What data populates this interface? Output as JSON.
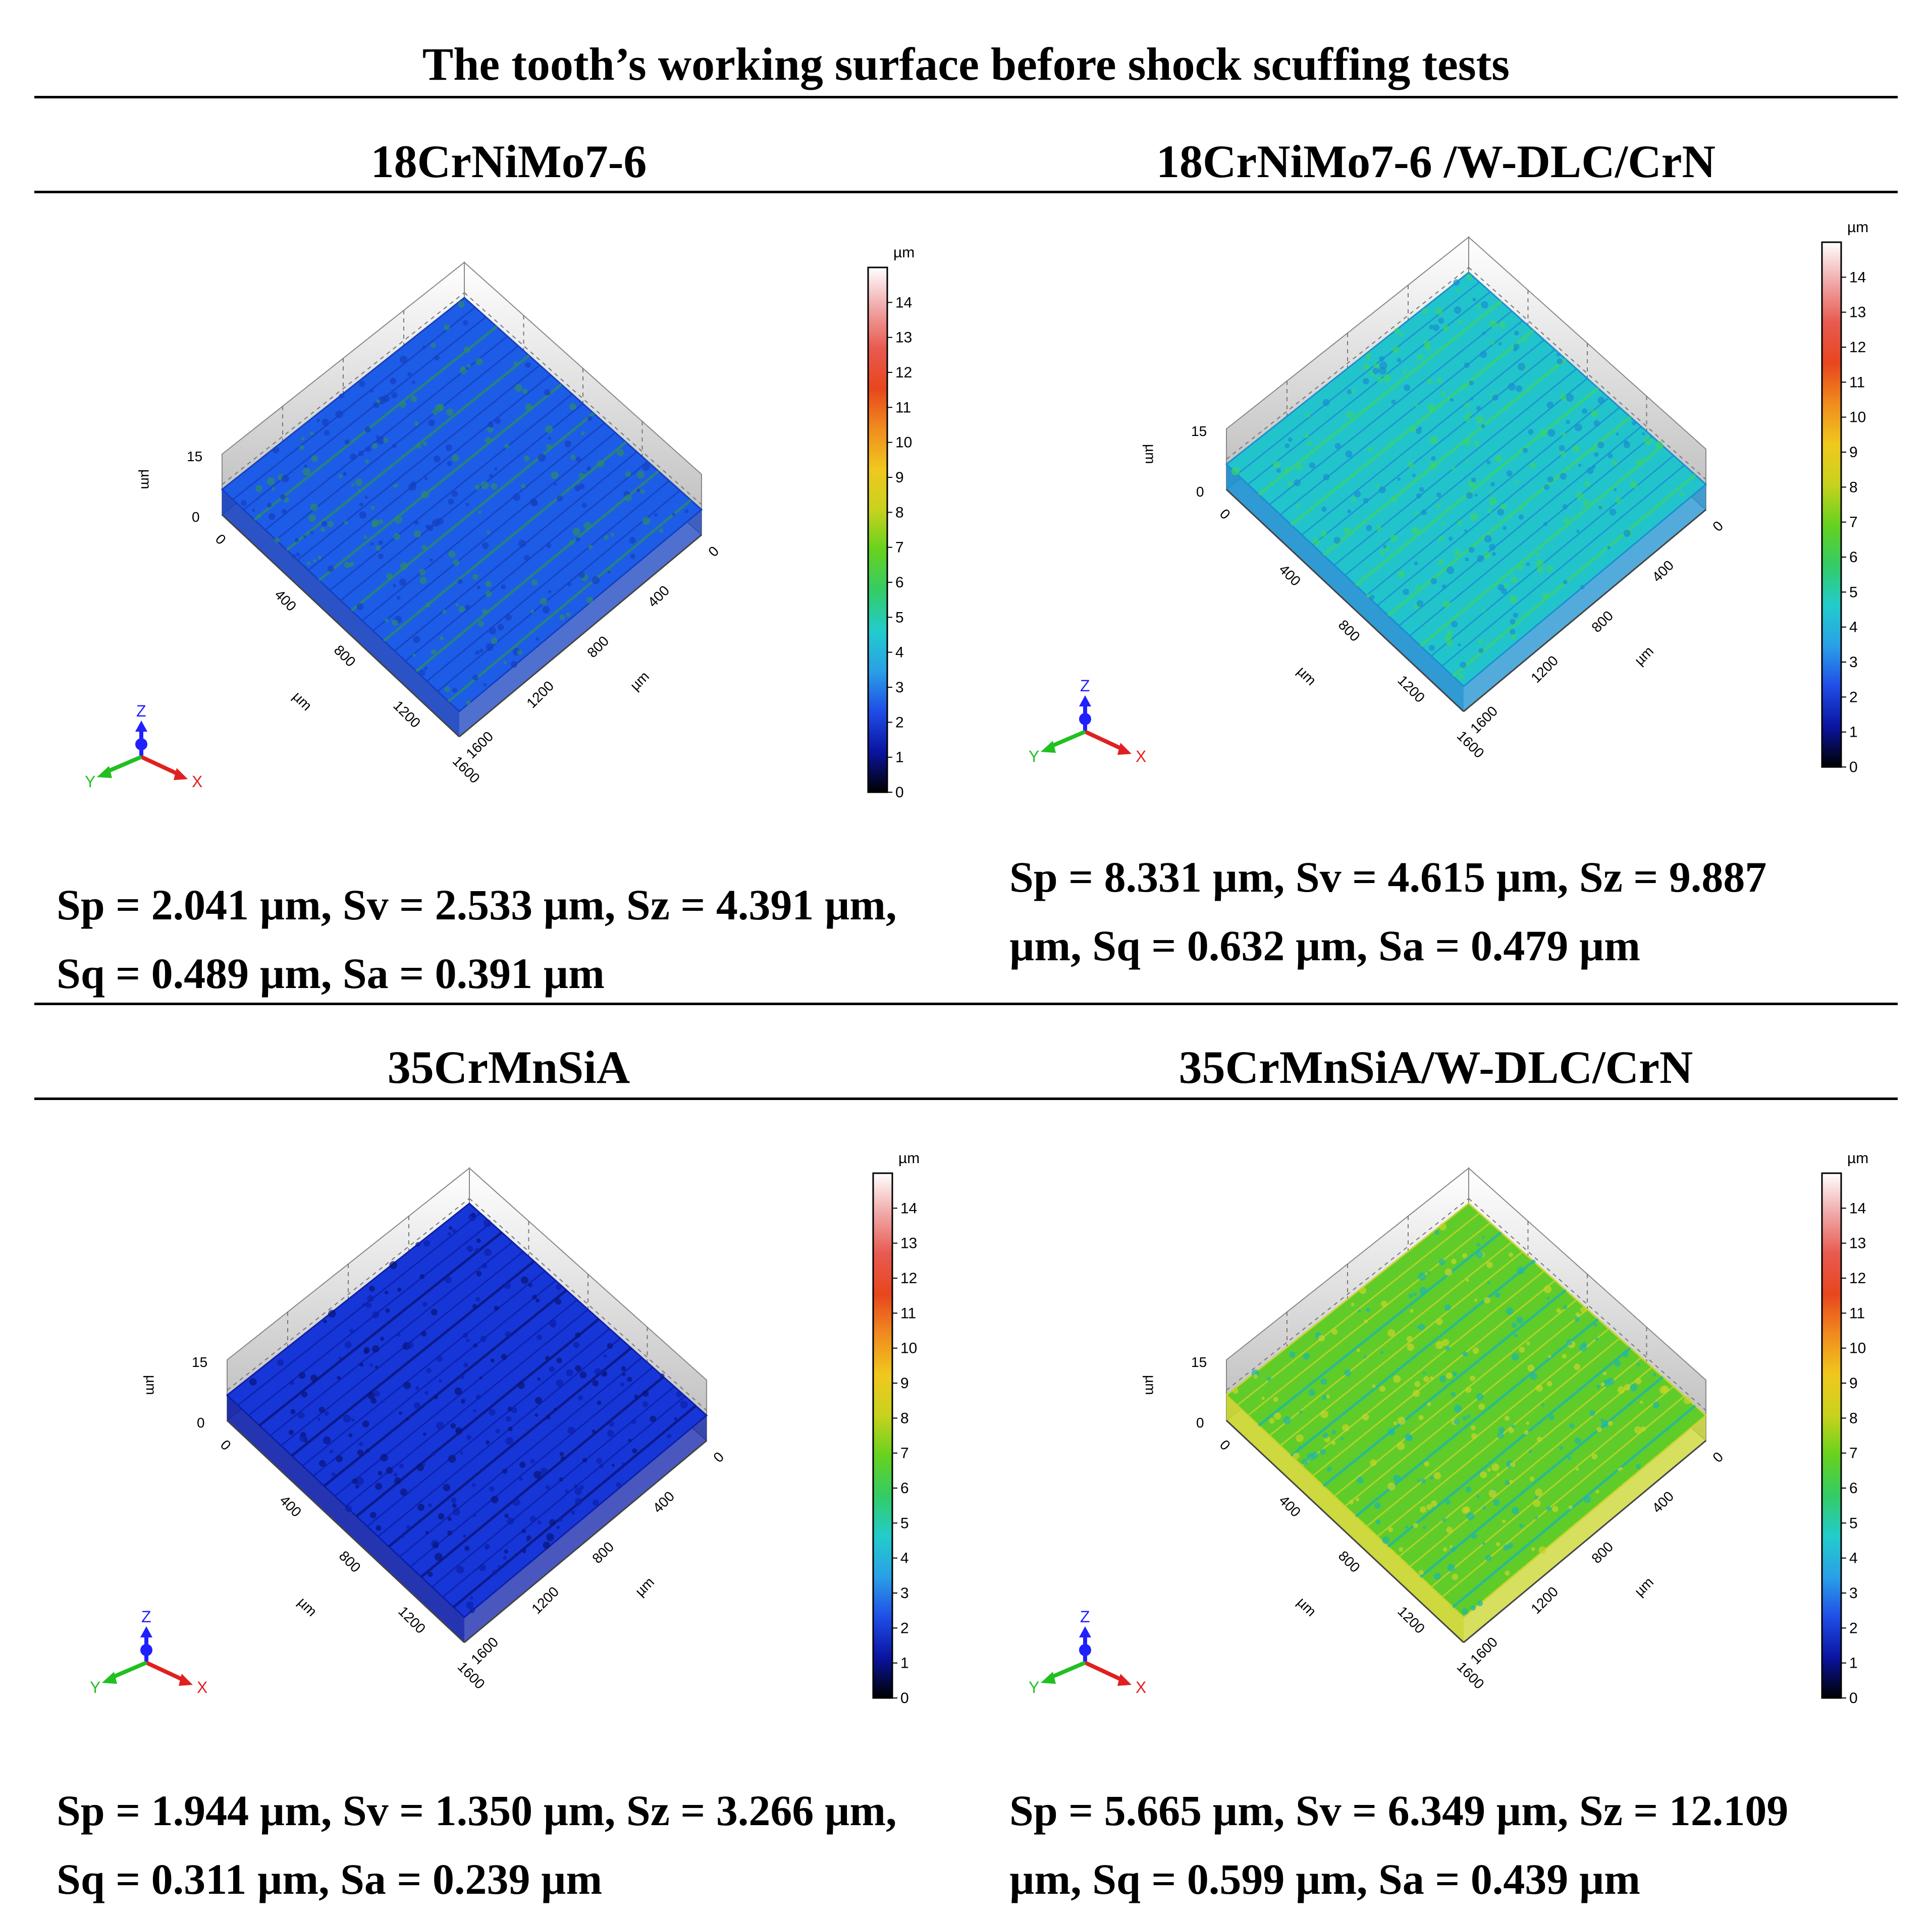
{
  "title": "The tooth’s working surface before shock scuffing tests",
  "panels": [
    {
      "heading": "18CrNiMo7-6",
      "stats_line1": "Sp = 2.041 µm, Sv = 2.533 µm, Sz = 4.391 µm,",
      "stats_line2": "Sq = 0.489 µm, Sa = 0.391 µm",
      "surface_color": "#1d5ce6",
      "surface_texture": "#1540c0",
      "stripe_color": "#2d8a6a"
    },
    {
      "heading": "18CrNiMo7-6 /W-DLC/CrN",
      "stats_line1": "Sp = 8.331 µm, Sv = 4.615 µm, Sz = 9.887",
      "stats_line2": "µm, Sq = 0.632 µm, Sa = 0.479 µm",
      "surface_color": "#22c4cc",
      "surface_texture": "#1a8fd0",
      "stripe_color": "#3bd36a"
    },
    {
      "heading": "35CrMnSiA",
      "stats_line1": "Sp = 1.944 µm, Sv = 1.350 µm, Sz = 3.266 µm,",
      "stats_line2": "Sq = 0.311 µm, Sa = 0.239 µm",
      "surface_color": "#1636d8",
      "surface_texture": "#0d1fa8",
      "stripe_color": "#0a1478"
    },
    {
      "heading": "35CrMnSiA/W-DLC/CrN",
      "stats_line1": "Sp = 5.665 µm, Sv = 6.349 µm, Sz = 12.109",
      "stats_line2": "µm, Sq = 0.599 µm, Sa = 0.439 µm",
      "surface_color": "#5fcc2a",
      "surface_texture": "#c9d42a",
      "stripe_color": "#20b6a8"
    }
  ],
  "plot": {
    "z_unit": "µm",
    "z_tick_top": "15",
    "z_tick_bottom": "0",
    "x_ticks": [
      "0",
      "400",
      "800",
      "1200",
      "1600"
    ],
    "y_ticks": [
      "0",
      "400",
      "800",
      "1200",
      "1600"
    ],
    "axis_unit": "µm",
    "axes_labels": {
      "x": "X",
      "y": "Y",
      "z": "Z"
    },
    "colorbar_unit": "µm",
    "colorbar_ticks": [
      "0",
      "1",
      "2",
      "3",
      "4",
      "5",
      "6",
      "7",
      "8",
      "9",
      "10",
      "11",
      "12",
      "13",
      "14"
    ],
    "colorbar_stops": [
      "#000000",
      "#0a14a0",
      "#1f4de6",
      "#2aa0e6",
      "#22cccc",
      "#33cc66",
      "#66d21e",
      "#c8d21e",
      "#f0c81e",
      "#f08c1e",
      "#e8461e",
      "#e85a50",
      "#f0a8a8",
      "#ffffff"
    ]
  }
}
